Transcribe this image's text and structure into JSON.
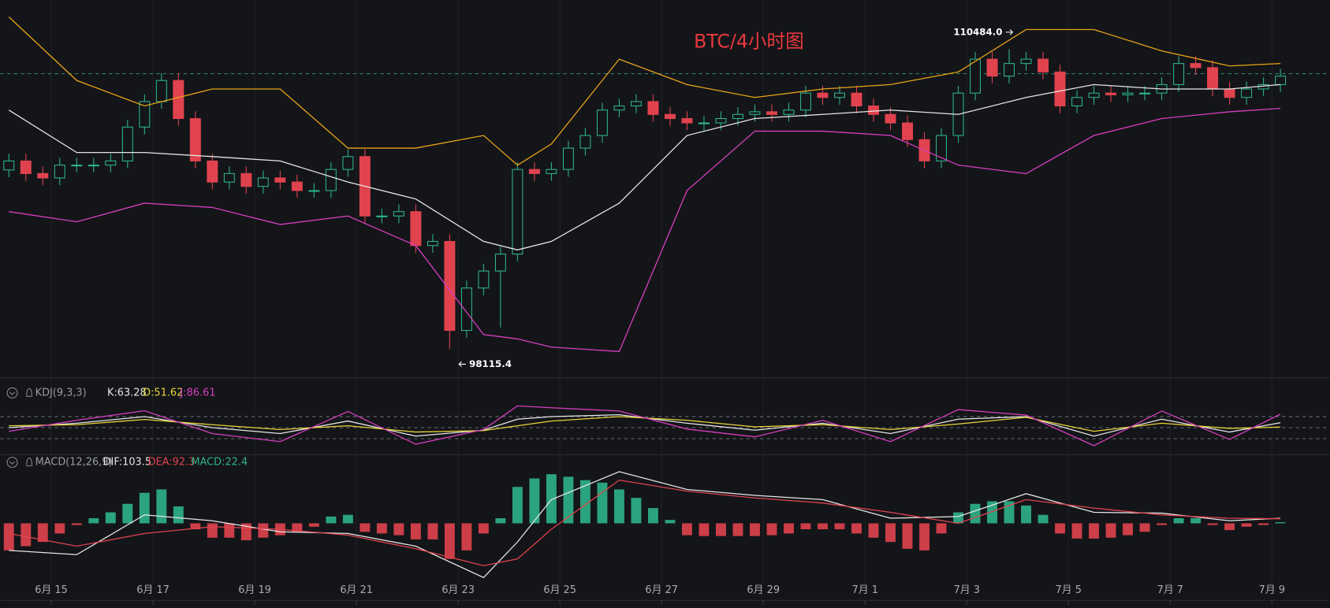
{
  "chart_data": [
    {
      "type": "candlestick",
      "title": "BTC/4小时图",
      "title_color": "#e8383d",
      "up_color": "#2db38a",
      "down_color": "#e0434e",
      "xlim": [
        -0.5,
        77.9
      ],
      "ylim": [
        97140,
        112510
      ],
      "price_line": 109470,
      "open": [
        105500,
        105870,
        105350,
        105170,
        105700,
        105700,
        105700,
        105870,
        107270,
        108320,
        109190,
        107620,
        105870,
        105000,
        105350,
        104820,
        105170,
        105000,
        104650,
        104650,
        105520,
        106050,
        103600,
        103600,
        103780,
        102380,
        102550,
        98880,
        100630,
        101330,
        102030,
        105520,
        105350,
        105520,
        106400,
        106920,
        107970,
        108140,
        108320,
        107790,
        107620,
        107440,
        107440,
        107620,
        107790,
        107900,
        107790,
        107970,
        108670,
        108490,
        108670,
        108140,
        107790,
        107440,
        106750,
        105870,
        106920,
        108670,
        110070,
        109370,
        109890,
        110070,
        109540,
        108140,
        108490,
        108670,
        108600,
        108670,
        108670,
        109020,
        109890,
        109720,
        108840,
        108490,
        108840,
        109020
      ],
      "high": [
        106170,
        106170,
        105650,
        106000,
        106000,
        106000,
        106170,
        107570,
        108620,
        109490,
        109490,
        107920,
        106170,
        105650,
        105650,
        105470,
        105470,
        105300,
        104950,
        105820,
        106350,
        106350,
        103900,
        104080,
        104080,
        102850,
        102850,
        100930,
        101630,
        102330,
        105820,
        105820,
        105820,
        106700,
        107220,
        108270,
        108440,
        108620,
        108620,
        108090,
        107920,
        107740,
        107920,
        108090,
        108200,
        108200,
        108270,
        108970,
        108970,
        108970,
        108970,
        108440,
        108090,
        107740,
        107050,
        107220,
        108970,
        110370,
        110370,
        110484,
        110370,
        110370,
        109840,
        108790,
        108970,
        108970,
        108970,
        108970,
        109320,
        110190,
        110190,
        110020,
        109140,
        109140,
        109320,
        109670
      ],
      "low": [
        105200,
        105050,
        104870,
        104870,
        105400,
        105400,
        105400,
        105570,
        106970,
        108020,
        107320,
        105570,
        104700,
        104700,
        104520,
        104520,
        104700,
        104350,
        104350,
        104350,
        105220,
        103300,
        103300,
        103300,
        102080,
        102080,
        98115.4,
        98580,
        100330,
        99000,
        101730,
        105050,
        105050,
        105220,
        106100,
        106620,
        107670,
        107840,
        107490,
        107320,
        107140,
        107140,
        107140,
        107320,
        107490,
        107490,
        107490,
        107670,
        108190,
        108190,
        107840,
        107490,
        107140,
        106450,
        105570,
        105570,
        106620,
        108370,
        109070,
        109070,
        109590,
        109240,
        107840,
        107840,
        108190,
        108300,
        108300,
        108370,
        108370,
        108720,
        109420,
        108540,
        108190,
        108190,
        108540,
        108720
      ],
      "close": [
        105870,
        105350,
        105170,
        105700,
        105700,
        105700,
        105870,
        107270,
        108320,
        109190,
        107620,
        105870,
        105000,
        105350,
        104820,
        105170,
        105000,
        104650,
        104650,
        105520,
        106050,
        103600,
        103600,
        103780,
        102380,
        102550,
        98880,
        100630,
        101330,
        102030,
        105520,
        105350,
        105520,
        106400,
        106920,
        107970,
        108140,
        108320,
        107790,
        107620,
        107440,
        107440,
        107620,
        107790,
        107900,
        107790,
        107970,
        108670,
        108490,
        108670,
        108140,
        107790,
        107440,
        106750,
        105870,
        106920,
        108670,
        110070,
        109370,
        109890,
        110070,
        109540,
        108140,
        108490,
        108670,
        108600,
        108670,
        108670,
        109020,
        109890,
        109720,
        108840,
        108490,
        108840,
        109020,
        109370
      ],
      "bands_x": [
        0,
        4,
        8,
        12,
        16,
        20,
        24,
        28,
        30,
        32,
        36,
        40,
        44,
        48,
        52,
        56,
        60,
        64,
        68,
        72,
        75
      ],
      "bands": [
        {
          "color": "#e8a317",
          "values": [
            111810,
            109190,
            108140,
            108840,
            108840,
            106400,
            106400,
            106920,
            105700,
            106570,
            110070,
            109020,
            108490,
            108840,
            109020,
            109540,
            111290,
            111290,
            110410,
            109790,
            109890
          ]
        },
        {
          "color": "#e6e6e6",
          "values": [
            107970,
            106220,
            106220,
            106050,
            105870,
            105000,
            104300,
            102550,
            102200,
            102550,
            104130,
            106920,
            107620,
            107790,
            107970,
            107790,
            108490,
            109020,
            108840,
            108840,
            109020
          ]
        },
        {
          "color": "#d63fbf",
          "values": [
            103780,
            103360,
            104130,
            103950,
            103250,
            103600,
            102380,
            98710,
            98530,
            98190,
            98010,
            104650,
            107100,
            107100,
            106920,
            105700,
            105350,
            106920,
            107620,
            107900,
            108040
          ]
        }
      ],
      "annotations": [
        {
          "at": 59,
          "value": 110484,
          "label": "110484.0",
          "side": "left"
        },
        {
          "at": 26,
          "value": 98115.4,
          "label": "98115.4",
          "side": "right"
        }
      ]
    },
    {
      "type": "line",
      "legend_title": "KDJ(9,3,3)",
      "xlim": [
        -0.5,
        77.9
      ],
      "ylim": [
        -19,
        165
      ],
      "yticks": [
        20,
        50,
        80
      ],
      "x": [
        0,
        4,
        8,
        12,
        16,
        20,
        24,
        28,
        30,
        32,
        36,
        40,
        44,
        48,
        52,
        56,
        60,
        64,
        68,
        72,
        75
      ],
      "series": [
        {
          "label": "K:63.28",
          "color": "#e6e6e6",
          "values": [
            50,
            62,
            80,
            50,
            34,
            68,
            27,
            43,
            73,
            80,
            85,
            62,
            43,
            62,
            34,
            73,
            80,
            27,
            73,
            38,
            63.28
          ]
        },
        {
          "label": "D:51.62",
          "color": "#e8d33a",
          "values": [
            55,
            58,
            72,
            58,
            45,
            55,
            38,
            42,
            55,
            68,
            80,
            70,
            52,
            58,
            45,
            60,
            78,
            40,
            62,
            48,
            51.62
          ]
        },
        {
          "label": "J:86.61",
          "color": "#d63fbf",
          "values": [
            40,
            70,
            96,
            34,
            12,
            94,
            5,
            45,
            109,
            104,
            95,
            46,
            25,
            70,
            12,
            99,
            84,
            1,
            95,
            18,
            86.61
          ]
        }
      ]
    },
    {
      "type": "macd",
      "legend_title": "MACD(12,26,9)",
      "xlim": [
        -0.5,
        77.9
      ],
      "ylim": [
        -1242,
        1173
      ],
      "xticks": [
        {
          "value": 2.5,
          "label": "6月 15"
        },
        {
          "value": 8.5,
          "label": "6月 17"
        },
        {
          "value": 14.5,
          "label": "6月 19"
        },
        {
          "value": 20.5,
          "label": "6月 21"
        },
        {
          "value": 26.5,
          "label": "6月 23"
        },
        {
          "value": 32.5,
          "label": "6月 25"
        },
        {
          "value": 38.5,
          "label": "6月 27"
        },
        {
          "value": 44.5,
          "label": "6月 29"
        },
        {
          "value": 50.5,
          "label": "7月 1"
        },
        {
          "value": 56.5,
          "label": "7月 3"
        },
        {
          "value": 62.5,
          "label": "7月 5"
        },
        {
          "value": 68.5,
          "label": "7月 7"
        },
        {
          "value": 74.5,
          "label": "7月 9"
        }
      ],
      "hist": {
        "label": "MACD:22.4",
        "up_color": "#2db38a",
        "down_color": "#e0434e",
        "values": [
          -552,
          -466,
          -380,
          -207,
          -35,
          104,
          224,
          397,
          621,
          690,
          345,
          -121,
          -293,
          -293,
          -345,
          -293,
          -242,
          -173,
          -69,
          138,
          173,
          -173,
          -207,
          -242,
          -328,
          -328,
          -725,
          -552,
          -207,
          104,
          742,
          914,
          1000,
          949,
          880,
          828,
          690,
          518,
          311,
          69,
          -242,
          -259,
          -259,
          -259,
          -259,
          -242,
          -207,
          -121,
          -121,
          -121,
          -207,
          -293,
          -380,
          -518,
          -552,
          -207,
          224,
          397,
          449,
          449,
          362,
          173,
          -207,
          -311,
          -311,
          -293,
          -242,
          -173,
          -35,
          104,
          104,
          -35,
          -138,
          -69,
          -35,
          22.4
        ]
      },
      "x": [
        0,
        4,
        8,
        12,
        16,
        20,
        24,
        28,
        30,
        32,
        36,
        40,
        44,
        48,
        52,
        56,
        60,
        64,
        68,
        72,
        75
      ],
      "series": [
        {
          "label": "DIF:103.5",
          "color": "#e6e6e6",
          "values": [
            -552,
            -638,
            173,
            52,
            -173,
            -207,
            -466,
            -1104,
            -380,
            483,
            1052,
            690,
            569,
            483,
            104,
            138,
            604,
            224,
            207,
            52,
            103.5
          ]
        },
        {
          "label": "DEA:92.3",
          "color": "#e0434e",
          "values": [
            -207,
            -466,
            -207,
            -69,
            -121,
            -242,
            -518,
            -863,
            -725,
            -121,
            880,
            656,
            518,
            414,
            224,
            0,
            483,
            311,
            173,
            104,
            92.3
          ]
        }
      ]
    }
  ]
}
